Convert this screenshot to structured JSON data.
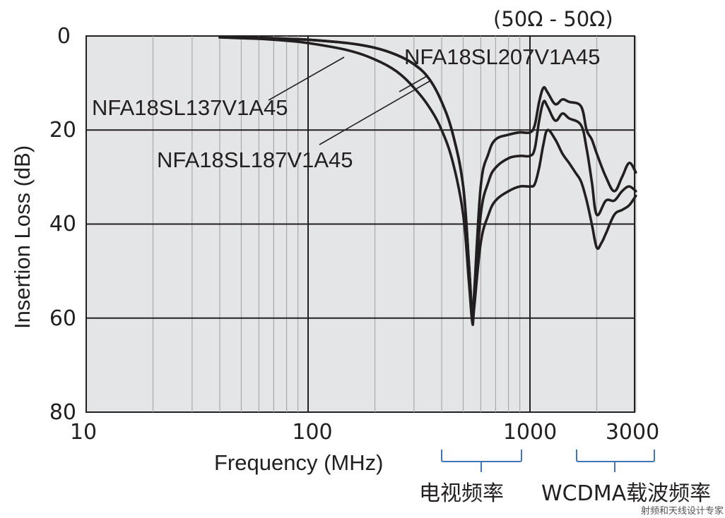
{
  "chart_data": {
    "type": "line",
    "title": "(50Ω - 50Ω)",
    "xlabel": "Frequency (MHz)",
    "ylabel": "Insertion Loss (dB)",
    "xscale": "log",
    "xlim": [
      10,
      3000
    ],
    "ylim": [
      0,
      80
    ],
    "y_inverted": true,
    "x_ticks": [
      "10",
      "100",
      "1000",
      "3000"
    ],
    "y_ticks": [
      "0",
      "20",
      "40",
      "60",
      "80"
    ],
    "grid": true,
    "annotations": [
      {
        "text": "电视频率",
        "range_mhz": [
          470,
          900
        ]
      },
      {
        "text": "WCDMA载波频率",
        "range_mhz": [
          1700,
          3000
        ]
      }
    ],
    "series": [
      {
        "name": "NFA18SL137V1A45",
        "x": [
          40,
          60,
          80,
          100,
          150,
          200,
          250,
          300,
          350,
          400,
          450,
          500,
          530,
          550,
          560,
          600,
          650,
          700,
          800,
          900,
          1000,
          1050,
          1100,
          1150,
          1200,
          1300,
          1400,
          1500,
          1600,
          1700,
          1800,
          1900,
          2000,
          2100,
          2200,
          2400,
          2600,
          2800,
          3000
        ],
        "values": [
          0.3,
          0.6,
          1.0,
          1.5,
          3.0,
          5.0,
          7.5,
          11,
          15,
          20,
          27,
          38,
          52,
          61,
          58,
          44,
          38,
          35,
          33,
          32,
          32,
          31.5,
          28,
          23,
          20,
          22,
          25,
          27,
          29,
          31,
          35,
          40,
          45,
          44,
          42,
          38,
          37,
          36,
          34
        ]
      },
      {
        "name": "NFA18SL187V1A45",
        "x": [
          40,
          60,
          80,
          100,
          150,
          200,
          250,
          300,
          350,
          400,
          450,
          500,
          530,
          550,
          560,
          600,
          650,
          700,
          800,
          900,
          1000,
          1050,
          1100,
          1150,
          1200,
          1300,
          1400,
          1500,
          1700,
          1800,
          1900,
          2000,
          2200,
          2400,
          2600,
          2800,
          3000
        ],
        "values": [
          0.2,
          0.4,
          0.6,
          0.8,
          1.5,
          2.5,
          4.0,
          6.0,
          9.0,
          14,
          21,
          32,
          48,
          60,
          57,
          38,
          31,
          28,
          26,
          25.5,
          25.5,
          24,
          18,
          14,
          15,
          18,
          16.5,
          17.5,
          19,
          24,
          31,
          38,
          35,
          35,
          33,
          32,
          33
        ]
      },
      {
        "name": "NFA18SL207V1A45",
        "x": [
          40,
          60,
          80,
          100,
          150,
          200,
          250,
          300,
          350,
          400,
          450,
          500,
          530,
          550,
          560,
          600,
          650,
          700,
          800,
          900,
          1000,
          1050,
          1100,
          1150,
          1200,
          1300,
          1400,
          1500,
          1700,
          1800,
          1900,
          2000,
          2200,
          2400,
          2600,
          2800,
          3000
        ],
        "values": [
          0.2,
          0.4,
          0.6,
          0.8,
          1.5,
          2.5,
          4.0,
          6.0,
          9.0,
          14,
          21,
          32,
          48,
          60,
          55,
          32,
          25,
          22,
          21,
          20.5,
          20.5,
          19,
          14,
          11,
          12,
          14.5,
          13.5,
          14,
          15,
          20,
          22,
          25,
          30,
          33,
          30,
          27,
          29
        ]
      }
    ],
    "series_labels": [
      {
        "name": "NFA18SL137V1A45",
        "x": 130,
        "y": 163
      },
      {
        "name": "NFA18SL187V1A45",
        "x": 222,
        "y": 237
      },
      {
        "name": "NFA18SL207V1A45",
        "x": 572,
        "y": 91
      }
    ]
  },
  "labels": {
    "title": "(50Ω - 50Ω)",
    "xlabel": "Frequency (MHz)",
    "ylabel": "Insertion Loss (dB)",
    "series1": "NFA18SL137V1A45",
    "series2": "NFA18SL187V1A45",
    "series3": "NFA18SL207V1A45",
    "band_tv": "电视频率",
    "band_wcdma": "WCDMA载波频率",
    "xtick0": "10",
    "xtick1": "100",
    "xtick2": "1000",
    "xtick3": "3000",
    "ytick0": "0",
    "ytick1": "20",
    "ytick2": "40",
    "ytick3": "60",
    "ytick4": "80",
    "watermark": "射频和天线设计专家"
  }
}
